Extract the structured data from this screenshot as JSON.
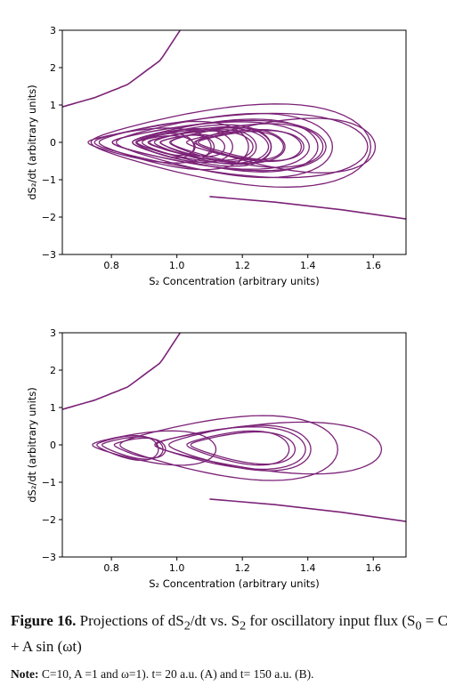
{
  "chart_data": [
    {
      "type": "line",
      "panel": "A",
      "xlabel": "S₂ Concentration (arbitrary units)",
      "ylabel": "dS₂/dt (arbitrary units)",
      "xlim": [
        0.65,
        1.7
      ],
      "ylim": [
        -3,
        3
      ],
      "xticks": [
        0.8,
        1.0,
        1.2,
        1.4,
        1.6
      ],
      "yticks": [
        -3,
        -2,
        -1,
        0,
        1,
        2,
        3
      ],
      "xtick_labels": [
        "0.8",
        "1.0",
        "1.2",
        "1.4",
        "1.6"
      ],
      "ytick_labels": [
        "−3",
        "−2",
        "−1",
        "0",
        "1",
        "2",
        "3"
      ],
      "grid": false,
      "color": "#7b2277",
      "transient": {
        "x": [
          0.65,
          0.75,
          0.85,
          0.95,
          1.01
        ],
        "y": [
          0.95,
          1.2,
          1.55,
          2.2,
          3.0
        ]
      },
      "tail": {
        "x": [
          1.1,
          1.3,
          1.5,
          1.7
        ],
        "y": [
          -1.45,
          -1.6,
          -1.8,
          -2.05
        ]
      },
      "attractor": {
        "x_range": [
          0.72,
          1.62
        ],
        "y_range": [
          -1.45,
          1.52
        ],
        "duration": 20
      }
    },
    {
      "type": "line",
      "panel": "B",
      "xlabel": "S₂ Concentration (arbitrary units)",
      "ylabel": "dS₂/dt (arbitrary units)",
      "xlim": [
        0.65,
        1.7
      ],
      "ylim": [
        -3,
        3
      ],
      "xticks": [
        0.8,
        1.0,
        1.2,
        1.4,
        1.6
      ],
      "yticks": [
        -3,
        -2,
        -1,
        0,
        1,
        2,
        3
      ],
      "xtick_labels": [
        "0.8",
        "1.0",
        "1.2",
        "1.4",
        "1.6"
      ],
      "ytick_labels": [
        "−3",
        "−2",
        "−1",
        "0",
        "1",
        "2",
        "3"
      ],
      "grid": false,
      "color": "#7b2277",
      "transient": {
        "x": [
          0.65,
          0.75,
          0.85,
          0.95,
          1.01
        ],
        "y": [
          0.95,
          1.2,
          1.55,
          2.2,
          3.0
        ]
      },
      "tail": {
        "x": [
          1.1,
          1.3,
          1.5,
          1.7
        ],
        "y": [
          -1.45,
          -1.6,
          -1.8,
          -2.05
        ]
      },
      "attractor": {
        "x_range": [
          0.72,
          1.62
        ],
        "y_range": [
          -1.45,
          1.52
        ],
        "duration": 150
      }
    }
  ],
  "caption": {
    "label": "Figure 16.",
    "text_main": " Projections of dS",
    "sub1": "2",
    "text_mid": "/dt vs. S",
    "sub2": "2",
    "text_after": " for oscillatory input flux (S",
    "sub3": "0",
    "text_end": " = C + A sin (ωt)"
  },
  "note": {
    "label": "Note:",
    "text": " C=10, A =1 and ω=1). t= 20 a.u. (A) and t= 150 a.u. (B)."
  }
}
